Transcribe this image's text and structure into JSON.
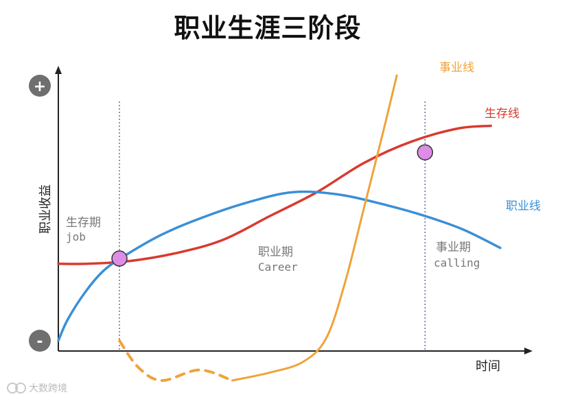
{
  "title": "职业生涯三阶段",
  "chart_data": {
    "type": "line",
    "xlabel": "时间",
    "ylabel": "职业收益",
    "y_top_marker": "+",
    "y_bottom_marker": "-",
    "grid": false,
    "phases": [
      {
        "cn": "生存期",
        "en": "job"
      },
      {
        "cn": "职业期",
        "en": "Career"
      },
      {
        "cn": "事业期",
        "en": "calling"
      }
    ],
    "series": [
      {
        "name": "生存线",
        "color": "#d93a2f",
        "points": [
          [
            0,
            0.29
          ],
          [
            0.06,
            0.29
          ],
          [
            0.15,
            0.3
          ],
          [
            0.25,
            0.33
          ],
          [
            0.35,
            0.38
          ],
          [
            0.45,
            0.47
          ],
          [
            0.55,
            0.56
          ],
          [
            0.65,
            0.67
          ],
          [
            0.75,
            0.75
          ],
          [
            0.85,
            0.8
          ],
          [
            0.92,
            0.81
          ]
        ],
        "dashed_until": null
      },
      {
        "name": "职业线",
        "color": "#3a8fd6",
        "points": [
          [
            0,
            0
          ],
          [
            0.02,
            0.08
          ],
          [
            0.06,
            0.19
          ],
          [
            0.1,
            0.27
          ],
          [
            0.15,
            0.33
          ],
          [
            0.22,
            0.4
          ],
          [
            0.3,
            0.46
          ],
          [
            0.4,
            0.52
          ],
          [
            0.5,
            0.56
          ],
          [
            0.6,
            0.55
          ],
          [
            0.7,
            0.51
          ],
          [
            0.78,
            0.47
          ],
          [
            0.86,
            0.42
          ],
          [
            0.94,
            0.35
          ]
        ],
        "dashed_until": null
      },
      {
        "name": "事业线",
        "color": "#f0a23a",
        "points": [
          [
            0.13,
            0.0
          ],
          [
            0.17,
            -0.1
          ],
          [
            0.22,
            -0.15
          ],
          [
            0.3,
            -0.11
          ],
          [
            0.37,
            -0.15
          ],
          [
            0.45,
            -0.12
          ],
          [
            0.52,
            -0.08
          ],
          [
            0.57,
            0.01
          ],
          [
            0.61,
            0.22
          ],
          [
            0.65,
            0.5
          ],
          [
            0.69,
            0.78
          ],
          [
            0.72,
            1.0
          ]
        ],
        "dashed_until": 0.37
      }
    ],
    "intersections": [
      {
        "x": 0.13,
        "y": 0.31
      },
      {
        "x": 0.78,
        "y": 0.71
      }
    ],
    "phase_dividers_x": [
      0.13,
      0.78
    ]
  },
  "watermark": "大数跨境",
  "colors": {
    "axis": "#222222",
    "sign_circle": "#6f6f6f",
    "marker_fill": "#dd8de6",
    "marker_stroke": "#333333",
    "divider": "#3b4a8a"
  }
}
